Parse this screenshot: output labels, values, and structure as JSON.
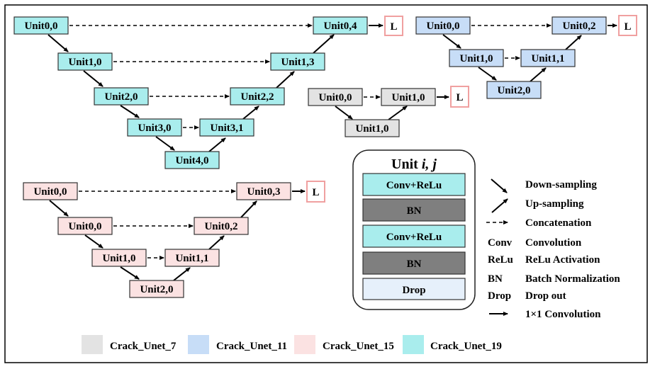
{
  "networks": {
    "crack_unet_19": {
      "color": "#a9eded",
      "units": [
        "Unit0,0",
        "Unit1,0",
        "Unit2,0",
        "Unit3,0",
        "Unit4,0",
        "Unit3,1",
        "Unit2,2",
        "Unit1,3",
        "Unit0,4"
      ],
      "output": "L"
    },
    "crack_unet_11": {
      "color": "#c7ddf7",
      "units": [
        "Unit0,0",
        "Unit1,0",
        "Unit2,0",
        "Unit1,1",
        "Unit0,2"
      ],
      "output": "L"
    },
    "crack_unet_7": {
      "color": "#e3e3e3",
      "units": [
        "Unit0,0",
        "Unit1,0",
        "Unit1,0"
      ],
      "output": "L"
    },
    "crack_unet_15": {
      "color": "#fbe2e2",
      "units": [
        "Unit0,0",
        "Unit0,0",
        "Unit1,0",
        "Unit2,0",
        "Unit1,1",
        "Unit0,2",
        "Unit0,3"
      ],
      "output": "L"
    }
  },
  "unit_block": {
    "title_prefix": "Unit ",
    "title_ij": "i, j",
    "layers": [
      "Conv+ReLu",
      "BN",
      "Conv+ReLu",
      "BN",
      "Drop"
    ],
    "layer_colors": [
      "#a9eded",
      "#7f7f7f",
      "#a9eded",
      "#7f7f7f",
      "#e6f0fb"
    ]
  },
  "legend": {
    "arrows": [
      {
        "icon": "down-sampling-arrow",
        "label": "Down-sampling"
      },
      {
        "icon": "up-sampling-arrow",
        "label": "Up-sampling"
      },
      {
        "icon": "dashed-arrow",
        "label": "Concatenation"
      }
    ],
    "abbreviations": [
      {
        "abbr": "Conv",
        "meaning": "Convolution"
      },
      {
        "abbr": "ReLu",
        "meaning": "ReLu Activation"
      },
      {
        "abbr": "BN",
        "meaning": "Batch Normalization"
      },
      {
        "abbr": "Drop",
        "meaning": "Drop out"
      }
    ],
    "conv1x1": {
      "icon": "solid-arrow",
      "label": "1×1 Convolution"
    }
  },
  "model_legend": [
    {
      "label": "Crack_Unet_7",
      "color": "#e3e3e3"
    },
    {
      "label": "Crack_Unet_11",
      "color": "#c7ddf7"
    },
    {
      "label": "Crack_Unet_15",
      "color": "#fbe2e2"
    },
    {
      "label": "Crack_Unet_19",
      "color": "#a9eded"
    }
  ]
}
